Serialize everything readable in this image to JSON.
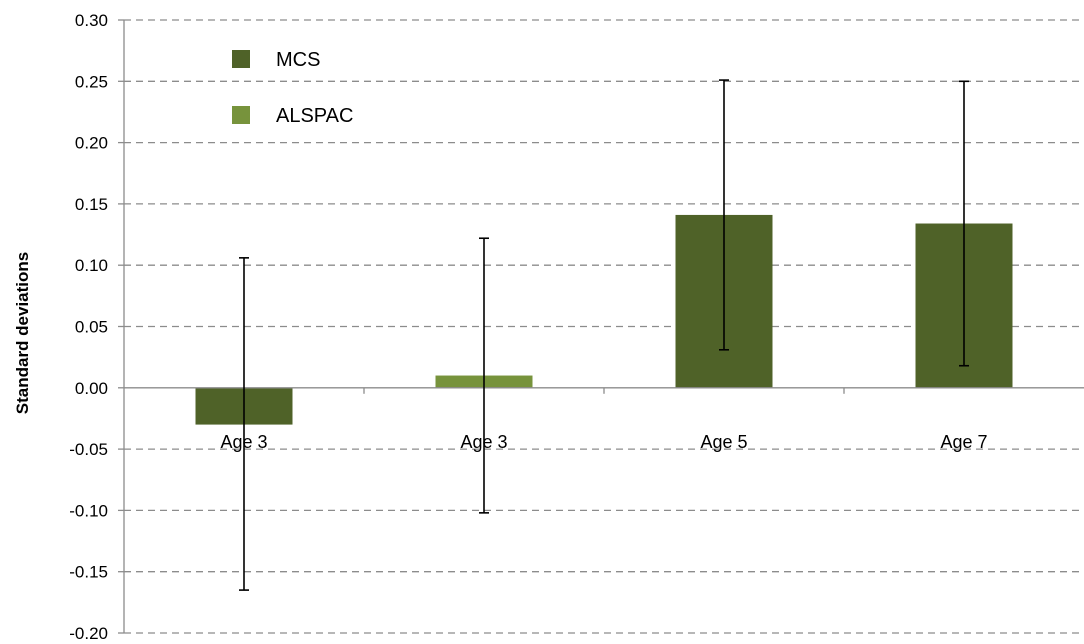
{
  "chart_data": {
    "type": "bar",
    "title": "",
    "xlabel": "",
    "ylabel": "Standard deviations",
    "ylim": [
      -0.2,
      0.3
    ],
    "yticks": [
      "0.30",
      "0.25",
      "0.20",
      "0.15",
      "0.10",
      "0.05",
      "0.00",
      "-0.05",
      "-0.10",
      "-0.15",
      "-0.20"
    ],
    "grid": true,
    "legend_position": "top-left",
    "legend": [
      {
        "name": "MCS",
        "color": "#4f6228"
      },
      {
        "name": "ALSPAC",
        "color": "#77933c"
      }
    ],
    "categories": [
      "Age 3",
      "Age 3",
      "Age 5",
      "Age 7"
    ],
    "bars": [
      {
        "category": "Age 3",
        "series": "MCS",
        "value": -0.03,
        "err_low": -0.165,
        "err_high": 0.106,
        "color": "#4f6228"
      },
      {
        "category": "Age 3",
        "series": "ALSPAC",
        "value": 0.01,
        "err_low": -0.102,
        "err_high": 0.122,
        "color": "#77933c"
      },
      {
        "category": "Age 5",
        "series": "MCS",
        "value": 0.141,
        "err_low": 0.031,
        "err_high": 0.251,
        "color": "#4f6228"
      },
      {
        "category": "Age 7",
        "series": "MCS",
        "value": 0.134,
        "err_low": 0.018,
        "err_high": 0.25,
        "color": "#4f6228"
      }
    ]
  }
}
